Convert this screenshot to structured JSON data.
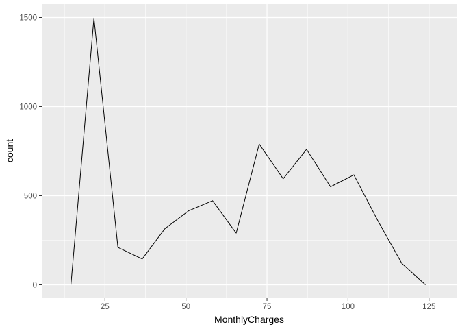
{
  "chart_data": {
    "type": "line",
    "xlabel": "MonthlyCharges",
    "ylabel": "count",
    "xlim": [
      5.5,
      133.5
    ],
    "ylim": [
      -75,
      1575
    ],
    "x_ticks": [
      25,
      50,
      75,
      100,
      125
    ],
    "y_ticks": [
      0,
      500,
      1000,
      1500
    ],
    "grid": true,
    "colors": {
      "panel": "#ebebeb",
      "grid": "#ffffff",
      "line": "#000000"
    },
    "series": [
      {
        "x": [
          14.5,
          21.6,
          29.0,
          36.5,
          43.5,
          50.8,
          58.2,
          65.5,
          72.6,
          80.0,
          87.2,
          94.6,
          101.8,
          109.2,
          116.6,
          123.9
        ],
        "y": [
          0,
          1497,
          210,
          145,
          315,
          415,
          472,
          290,
          790,
          595,
          760,
          550,
          617,
          360,
          120,
          0
        ]
      }
    ]
  }
}
